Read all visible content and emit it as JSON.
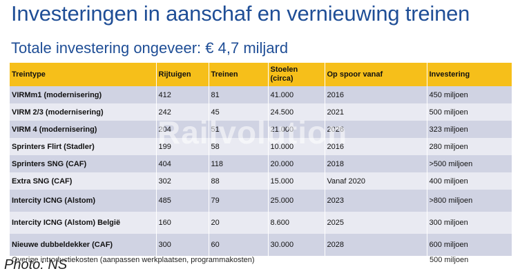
{
  "slide": {
    "title": "Investeringen in aanschaf en vernieuwing treinen",
    "subtitle": "Totale investering ongeveer: € 4,7 miljard"
  },
  "table": {
    "headers": [
      "Treintype",
      "Rijtuigen",
      "Treinen",
      "Stoelen (circa)",
      "Op spoor vanaf",
      "Investering"
    ],
    "rows": [
      [
        "VIRMm1 (modernisering)",
        "412",
        "81",
        "41.000",
        "2016",
        "450 miljoen"
      ],
      [
        "VIRM 2/3 (modernisering)",
        "242",
        "45",
        "24.500",
        "2021",
        "500 miljoen"
      ],
      [
        "VIRM 4 (modernisering)",
        "204",
        "51",
        "21.000",
        "2026",
        "323 miljoen"
      ],
      [
        "Sprinters Flirt (Stadler)",
        "199",
        "58",
        "10.000",
        "2016",
        "280 miljoen"
      ],
      [
        "Sprinters SNG (CAF)",
        "404",
        "118",
        "20.000",
        "2018",
        ">500 miljoen"
      ],
      [
        "Extra SNG (CAF)",
        "302",
        "88",
        "15.000",
        "Vanaf 2020",
        "400 miljoen"
      ],
      [
        "Intercity ICNG (Alstom)",
        "485",
        "79",
        "25.000",
        "2023",
        ">800 miljoen"
      ],
      [
        "Intercity ICNG (Alstom) België",
        "160",
        "20",
        "8.600",
        "2025",
        "300 miljoen"
      ],
      [
        "Nieuwe dubbeldekker (CAF)",
        "300",
        "60",
        "30.000",
        "2028",
        "600 miljoen"
      ]
    ]
  },
  "footer": {
    "note": "Overige introductiekosten (aanpassen werkplaatsen, programmakosten)",
    "value": "500 miljoen"
  },
  "watermark": "Railvolution",
  "credit": "Photo: NS"
}
